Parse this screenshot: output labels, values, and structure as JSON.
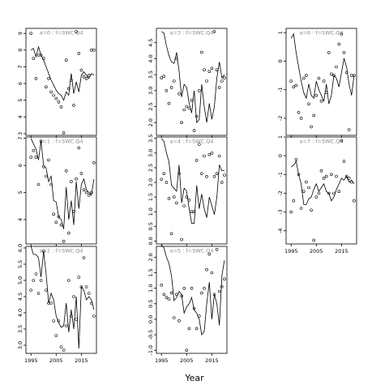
{
  "figure": {
    "xlabel": "Year"
  },
  "chart_data": [
    {
      "type": "line",
      "title": "a=0  :  f=SWC.Q4",
      "xlim": [
        1993,
        2021
      ],
      "ylim": [
        2.9,
        9.3
      ],
      "yticks": [
        3,
        4,
        5,
        6,
        7,
        8,
        9
      ],
      "xticks": [
        1995,
        2005,
        2015
      ],
      "series": [
        {
          "kind": "line",
          "x": [
            1995,
            1996,
            1997,
            1998,
            1999,
            2000,
            2001,
            2002,
            2003,
            2004,
            2005,
            2006,
            2007,
            2008,
            2009,
            2010,
            2011,
            2012,
            2013,
            2014,
            2015,
            2016,
            2017,
            2018,
            2019,
            2020
          ],
          "values": [
            8.0,
            8.1,
            7.6,
            8.2,
            7.7,
            7.4,
            7.0,
            6.6,
            6.2,
            5.9,
            5.6,
            5.4,
            5.3,
            5.0,
            5.5,
            5.3,
            6.6,
            5.4,
            6.1,
            5.5,
            6.5,
            6.7,
            6.5,
            6.3,
            6.6,
            6.5
          ]
        },
        {
          "kind": "points",
          "x": [
            1995,
            1996,
            1997,
            1998,
            1999,
            2000,
            2001,
            2002,
            2003,
            2004,
            2005,
            2006,
            2007,
            2008,
            2009,
            2010,
            2011,
            2012,
            2013,
            2014,
            2015,
            2016,
            2017,
            2018,
            2019,
            2020
          ],
          "values": [
            9.0,
            7.5,
            6.3,
            7.7,
            7.7,
            7.5,
            5.8,
            6.3,
            5.5,
            5.3,
            5.1,
            4.9,
            4.6,
            3.05,
            7.4,
            5.7,
            6.2,
            4.7,
            9.1,
            7.8,
            6.8,
            6.4,
            6.3,
            6.5,
            8.0,
            8.0
          ]
        }
      ]
    },
    {
      "type": "line",
      "title": "a=3  :  f=SWC.Q4",
      "xlim": [
        1993,
        2021
      ],
      "ylim": [
        1.6,
        4.95
      ],
      "yticks": [
        2.0,
        2.5,
        3.0,
        3.5,
        4.0,
        4.5
      ],
      "xticks": [
        1995,
        2005,
        2015
      ],
      "series": [
        {
          "kind": "line",
          "x": [
            1995,
            1996,
            1997,
            1998,
            1999,
            2000,
            2001,
            2002,
            2003,
            2004,
            2005,
            2006,
            2007,
            2008,
            2009,
            2010,
            2011,
            2012,
            2013,
            2014,
            2015,
            2016,
            2017,
            2018,
            2019,
            2020
          ],
          "values": [
            4.85,
            4.8,
            4.4,
            4.1,
            3.9,
            3.85,
            4.2,
            3.6,
            2.8,
            3.2,
            3.1,
            2.6,
            2.3,
            3.0,
            2.0,
            2.1,
            3.2,
            2.5,
            2.0,
            2.6,
            2.1,
            2.5,
            3.4,
            3.9,
            3.4,
            3.5
          ]
        },
        {
          "kind": "points",
          "x": [
            1995,
            1996,
            1997,
            1998,
            1999,
            2000,
            2001,
            2002,
            2003,
            2004,
            2005,
            2006,
            2007,
            2008,
            2009,
            2010,
            2011,
            2012,
            2013,
            2014,
            2015,
            2016,
            2017,
            2018,
            2019,
            2020
          ],
          "values": [
            3.4,
            3.45,
            3.0,
            2.6,
            3.1,
            3.3,
            4.0,
            2.9,
            2.0,
            2.4,
            2.5,
            2.45,
            2.7,
            1.75,
            2.2,
            3.0,
            4.2,
            3.65,
            3.3,
            3.6,
            3.7,
            4.85,
            3.65,
            3.1,
            3.3,
            3.4
          ]
        }
      ]
    },
    {
      "type": "line",
      "title": "a=6  :  f=SWC.Q4",
      "xlim": [
        1993,
        2021
      ],
      "ylim": [
        -2.6,
        1.15
      ],
      "yticks": [
        -2,
        -1,
        0,
        1
      ],
      "xticks": [
        1995,
        2005,
        2015
      ],
      "series": [
        {
          "kind": "line",
          "x": [
            1995,
            1996,
            1997,
            1998,
            1999,
            2000,
            2001,
            2002,
            2003,
            2004,
            2005,
            2006,
            2007,
            2008,
            2009,
            2010,
            2011,
            2012,
            2013,
            2014,
            2015,
            2016,
            2017,
            2018,
            2019,
            2020
          ],
          "values": [
            0.8,
            0.95,
            0.3,
            -0.2,
            -0.7,
            -1.1,
            -1.3,
            -0.8,
            -1.2,
            -1.3,
            -0.7,
            -1.0,
            -1.2,
            -1.4,
            -0.8,
            -1.5,
            -1.2,
            -0.5,
            -0.6,
            -0.9,
            -0.4,
            0.1,
            -0.2,
            -0.8,
            -1.2,
            -0.5
          ]
        },
        {
          "kind": "points",
          "x": [
            1995,
            1996,
            1997,
            1998,
            1999,
            2000,
            2001,
            2002,
            2003,
            2004,
            2005,
            2006,
            2007,
            2008,
            2009,
            2010,
            2011,
            2012,
            2013,
            2014,
            2015,
            2016,
            2017,
            2018,
            2019,
            2020
          ],
          "values": [
            -0.7,
            -0.9,
            -0.85,
            -1.8,
            -2.0,
            -0.6,
            -0.5,
            -1.5,
            -2.3,
            -1.9,
            -1.2,
            -0.6,
            -1.4,
            -0.7,
            -1.1,
            0.3,
            -0.45,
            -0.5,
            -0.2,
            0.6,
            0.95,
            0.3,
            -0.4,
            -2.4,
            -0.5,
            -0.5
          ]
        }
      ]
    },
    {
      "type": "line",
      "title": "a=1  :  f=SWC.Q4",
      "xlim": [
        1993,
        2021
      ],
      "ylim": [
        3.1,
        7.05
      ],
      "yticks": [
        4,
        5,
        6,
        7
      ],
      "xticks": [
        1995,
        2005,
        2015
      ],
      "series": [
        {
          "kind": "line",
          "x": [
            1995,
            1996,
            1997,
            1998,
            1999,
            2000,
            2001,
            2002,
            2003,
            2004,
            2005,
            2006,
            2007,
            2008,
            2009,
            2010,
            2011,
            2012,
            2013,
            2014,
            2015,
            2016,
            2017,
            2018,
            2019,
            2020
          ],
          "values": [
            7.0,
            6.8,
            6.6,
            6.2,
            6.9,
            6.0,
            5.9,
            5.4,
            5.6,
            4.7,
            4.65,
            4.1,
            4.0,
            3.65,
            5.2,
            4.0,
            4.7,
            3.8,
            5.4,
            4.4,
            5.3,
            5.5,
            5.1,
            5.0,
            4.9,
            5.5
          ]
        },
        {
          "kind": "points",
          "x": [
            1995,
            1996,
            1997,
            1998,
            1999,
            2000,
            2001,
            2002,
            2003,
            2004,
            2005,
            2006,
            2007,
            2008,
            2009,
            2010,
            2011,
            2012,
            2013,
            2014,
            2015,
            2016,
            2017,
            2018,
            2019,
            2020
          ],
          "values": [
            6.3,
            6.55,
            6.3,
            5.3,
            6.9,
            5.95,
            5.6,
            6.2,
            5.3,
            4.2,
            3.9,
            4.1,
            3.8,
            3.2,
            5.8,
            3.5,
            5.4,
            4.3,
            5.5,
            6.65,
            5.7,
            5.1,
            5.0,
            4.9,
            5.0,
            6.1
          ]
        }
      ]
    },
    {
      "type": "line",
      "title": "a=4  :  f=SWC.Q4",
      "xlim": [
        1993,
        2021
      ],
      "ylim": [
        -0.1,
        3.55
      ],
      "yticks": [
        0.0,
        0.5,
        1.0,
        1.5,
        2.0,
        2.5,
        3.0,
        3.5
      ],
      "xticks": [
        1995,
        2005,
        2015
      ],
      "series": [
        {
          "kind": "line",
          "x": [
            1995,
            1996,
            1997,
            1998,
            1999,
            2000,
            2001,
            2002,
            2003,
            2004,
            2005,
            2006,
            2007,
            2008,
            2009,
            2010,
            2011,
            2012,
            2013,
            2014,
            2015,
            2016,
            2017,
            2018,
            2019,
            2020
          ],
          "values": [
            3.5,
            3.4,
            3.0,
            2.7,
            1.9,
            1.8,
            1.7,
            2.6,
            1.3,
            1.8,
            1.7,
            1.1,
            0.6,
            0.6,
            1.9,
            1.1,
            1.6,
            1.1,
            0.8,
            1.5,
            1.2,
            0.9,
            1.5,
            2.6,
            2.4,
            2.4
          ]
        },
        {
          "kind": "points",
          "x": [
            1995,
            1996,
            1997,
            1998,
            1999,
            2000,
            2001,
            2002,
            2003,
            2004,
            2005,
            2006,
            2007,
            2008,
            2009,
            2010,
            2011,
            2012,
            2013,
            2014,
            2015,
            2016,
            2017,
            2018,
            2019,
            2020
          ],
          "values": [
            2.1,
            2.3,
            2.0,
            1.45,
            0.25,
            1.5,
            1.3,
            2.3,
            0.05,
            1.2,
            1.5,
            1.4,
            1.0,
            1.0,
            2.75,
            3.3,
            2.3,
            2.9,
            2.2,
            2.95,
            3.0,
            2.2,
            2.3,
            2.9,
            2.0,
            2.25
          ]
        }
      ]
    },
    {
      "type": "line",
      "title": "a=7  :  f=SWC.Q4",
      "xlim": [
        1993,
        2021
      ],
      "ylim": [
        -4.7,
        1.0
      ],
      "yticks": [
        -4,
        -3,
        -2,
        -1,
        0,
        1
      ],
      "xticks": [
        1995,
        2005,
        2015
      ],
      "series": [
        {
          "kind": "line",
          "x": [
            1995,
            1996,
            1997,
            1998,
            1999,
            2000,
            2001,
            2002,
            2003,
            2004,
            2005,
            2006,
            2007,
            2008,
            2009,
            2010,
            2011,
            2012,
            2013,
            2014,
            2015,
            2016,
            2017,
            2018,
            2019,
            2020
          ],
          "values": [
            -0.6,
            -0.5,
            -0.3,
            -1.0,
            -1.5,
            -2.6,
            -2.6,
            -2.3,
            -2.2,
            -1.8,
            -1.5,
            -1.9,
            -1.7,
            -1.5,
            -1.9,
            -2.0,
            -2.4,
            -2.2,
            -1.8,
            -1.5,
            -1.2,
            -1.3,
            -1.1,
            -1.4,
            -1.3,
            -1.5
          ]
        },
        {
          "kind": "points",
          "x": [
            1995,
            1996,
            1997,
            1998,
            1999,
            2000,
            2001,
            2002,
            2003,
            2004,
            2005,
            2006,
            2007,
            2008,
            2009,
            2010,
            2011,
            2012,
            2013,
            2014,
            2015,
            2016,
            2017,
            2018,
            2019,
            2020
          ],
          "values": [
            -3.0,
            -2.4,
            -0.2,
            -1.0,
            -2.8,
            -1.9,
            -1.4,
            -1.7,
            -2.9,
            -4.5,
            -2.2,
            -2.0,
            -0.8,
            -1.2,
            -1.1,
            -2.0,
            -1.0,
            -2.0,
            -1.1,
            -1.9,
            0.8,
            -0.3,
            -1.1,
            -1.2,
            -1.4,
            -2.4
          ]
        }
      ]
    },
    {
      "type": "line",
      "title": "a=2  :  f=SWC.Q4",
      "xlim": [
        1993,
        2021
      ],
      "ylim": [
        2.75,
        6.05
      ],
      "yticks": [
        3.0,
        3.5,
        4.0,
        4.5,
        5.0,
        5.5,
        6.0
      ],
      "xticks": [
        1995,
        2005,
        2015
      ],
      "series": [
        {
          "kind": "line",
          "x": [
            1995,
            1996,
            1997,
            1998,
            1999,
            2000,
            2001,
            2002,
            2003,
            2004,
            2005,
            2006,
            2007,
            2008,
            2009,
            2010,
            2011,
            2012,
            2013,
            2014,
            2015,
            2016,
            2017,
            2018,
            2019,
            2020
          ],
          "values": [
            6.05,
            5.8,
            5.8,
            5.7,
            5.1,
            5.9,
            5.2,
            4.3,
            4.6,
            4.4,
            3.9,
            3.7,
            3.55,
            3.6,
            4.3,
            3.4,
            4.1,
            3.5,
            4.5,
            2.9,
            4.8,
            4.7,
            4.4,
            4.5,
            4.4,
            4.1
          ]
        },
        {
          "kind": "points",
          "x": [
            1995,
            1996,
            1997,
            1998,
            1999,
            2000,
            2001,
            2002,
            2003,
            2004,
            2005,
            2006,
            2007,
            2008,
            2009,
            2010,
            2011,
            2012,
            2013,
            2014,
            2015,
            2016,
            2017,
            2018,
            2019,
            2020
          ],
          "values": [
            4.7,
            5.0,
            5.2,
            4.6,
            5.0,
            5.9,
            4.7,
            4.3,
            4.3,
            3.75,
            3.3,
            3.75,
            2.95,
            2.85,
            3.6,
            5.0,
            3.9,
            4.5,
            3.8,
            5.1,
            4.8,
            5.7,
            4.8,
            4.6,
            4.3,
            3.9
          ]
        }
      ]
    },
    {
      "type": "line",
      "title": "a=5  :  f=SWC.Q4",
      "xlim": [
        1993,
        2021
      ],
      "ylim": [
        -1.1,
        2.35
      ],
      "yticks": [
        -1.0,
        -0.5,
        0.0,
        0.5,
        1.0,
        1.5,
        2.0
      ],
      "xticks": [
        1995,
        2005,
        2015
      ],
      "series": [
        {
          "kind": "line",
          "x": [
            1995,
            1996,
            1997,
            1998,
            1999,
            2000,
            2001,
            2002,
            2003,
            2004,
            2005,
            2006,
            2007,
            2008,
            2009,
            2010,
            2011,
            2012,
            2013,
            2014,
            2015,
            2016,
            2017,
            2018,
            2019,
            2020
          ],
          "values": [
            2.4,
            2.3,
            2.0,
            1.8,
            1.4,
            0.6,
            0.7,
            0.9,
            0.8,
            0.2,
            0.4,
            0.5,
            0.7,
            0.3,
            0.2,
            0.0,
            -0.5,
            -0.4,
            0.5,
            1.2,
            0.0,
            0.8,
            0.5,
            -0.2,
            1.4,
            1.9
          ]
        },
        {
          "kind": "points",
          "x": [
            1995,
            1996,
            1997,
            1998,
            1999,
            2000,
            2001,
            2002,
            2003,
            2004,
            2005,
            2006,
            2007,
            2008,
            2009,
            2010,
            2011,
            2012,
            2013,
            2014,
            2015,
            2016,
            2017,
            2018,
            2019,
            2020
          ],
          "values": [
            1.1,
            0.8,
            0.7,
            0.65,
            0.85,
            0.05,
            0.8,
            -0.05,
            0.75,
            1.0,
            -1.0,
            -0.3,
            1.0,
            0.35,
            -0.3,
            0.1,
            0.85,
            1.0,
            1.6,
            2.1,
            1.5,
            0.8,
            2.25,
            0.9,
            1.05,
            1.3
          ]
        }
      ]
    }
  ]
}
